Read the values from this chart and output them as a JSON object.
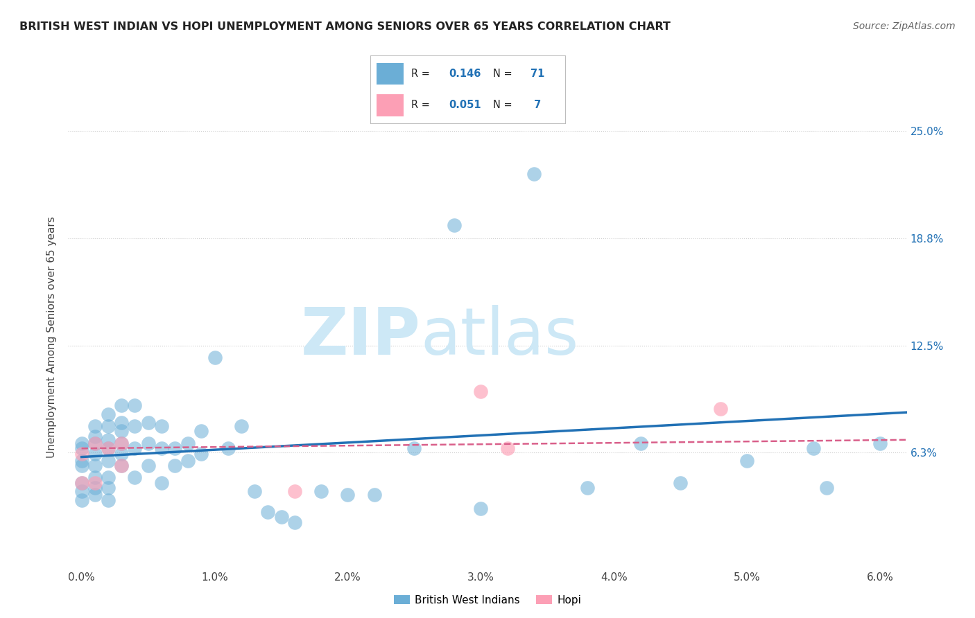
{
  "title": "BRITISH WEST INDIAN VS HOPI UNEMPLOYMENT AMONG SENIORS OVER 65 YEARS CORRELATION CHART",
  "source": "Source: ZipAtlas.com",
  "ylabel": "Unemployment Among Seniors over 65 years",
  "xlim": [
    -0.001,
    0.062
  ],
  "ylim": [
    -0.005,
    0.265
  ],
  "yticks": [
    0.0,
    0.0625,
    0.125,
    0.1875,
    0.25
  ],
  "ytick_labels": [
    "",
    "6.3%",
    "12.5%",
    "18.8%",
    "25.0%"
  ],
  "xtick_labels": [
    "0.0%",
    "1.0%",
    "2.0%",
    "3.0%",
    "4.0%",
    "5.0%",
    "6.0%"
  ],
  "xticks": [
    0.0,
    0.01,
    0.02,
    0.03,
    0.04,
    0.05,
    0.06
  ],
  "legend_labels_bottom": [
    "British West Indians",
    "Hopi"
  ],
  "blue_color": "#6baed6",
  "pink_color": "#fc9fb5",
  "blue_line_color": "#2171b5",
  "pink_line_color": "#d95f8a",
  "watermark_zip": "ZIP",
  "watermark_atlas": "atlas",
  "watermark_color": "#cde8f6",
  "blue_scatter_x": [
    0.0,
    0.0,
    0.0,
    0.0,
    0.0,
    0.0,
    0.0,
    0.001,
    0.001,
    0.001,
    0.001,
    0.001,
    0.001,
    0.001,
    0.001,
    0.002,
    0.002,
    0.002,
    0.002,
    0.002,
    0.002,
    0.002,
    0.002,
    0.003,
    0.003,
    0.003,
    0.003,
    0.003,
    0.003,
    0.004,
    0.004,
    0.004,
    0.004,
    0.005,
    0.005,
    0.005,
    0.006,
    0.006,
    0.006,
    0.007,
    0.007,
    0.008,
    0.008,
    0.009,
    0.009,
    0.01,
    0.011,
    0.012,
    0.013,
    0.014,
    0.015,
    0.016,
    0.018,
    0.02,
    0.022,
    0.025,
    0.028,
    0.03,
    0.034,
    0.038,
    0.042,
    0.045,
    0.05,
    0.055,
    0.056,
    0.06
  ],
  "blue_scatter_y": [
    0.065,
    0.068,
    0.055,
    0.058,
    0.045,
    0.04,
    0.035,
    0.062,
    0.068,
    0.072,
    0.078,
    0.055,
    0.048,
    0.042,
    0.038,
    0.065,
    0.07,
    0.058,
    0.078,
    0.085,
    0.048,
    0.042,
    0.035,
    0.068,
    0.075,
    0.062,
    0.08,
    0.09,
    0.055,
    0.078,
    0.09,
    0.065,
    0.048,
    0.068,
    0.08,
    0.055,
    0.065,
    0.078,
    0.045,
    0.065,
    0.055,
    0.068,
    0.058,
    0.075,
    0.062,
    0.118,
    0.065,
    0.078,
    0.04,
    0.028,
    0.025,
    0.022,
    0.04,
    0.038,
    0.038,
    0.065,
    0.195,
    0.03,
    0.225,
    0.042,
    0.068,
    0.045,
    0.058,
    0.065,
    0.042,
    0.068
  ],
  "pink_scatter_x": [
    0.0,
    0.0,
    0.001,
    0.001,
    0.002,
    0.003,
    0.003,
    0.016,
    0.03,
    0.032,
    0.048
  ],
  "pink_scatter_y": [
    0.062,
    0.045,
    0.068,
    0.045,
    0.065,
    0.068,
    0.055,
    0.04,
    0.098,
    0.065,
    0.088
  ],
  "blue_trend_x": [
    0.0,
    0.062
  ],
  "blue_trend_y": [
    0.06,
    0.086
  ],
  "pink_trend_x": [
    0.0,
    0.062
  ],
  "pink_trend_y": [
    0.065,
    0.07
  ]
}
